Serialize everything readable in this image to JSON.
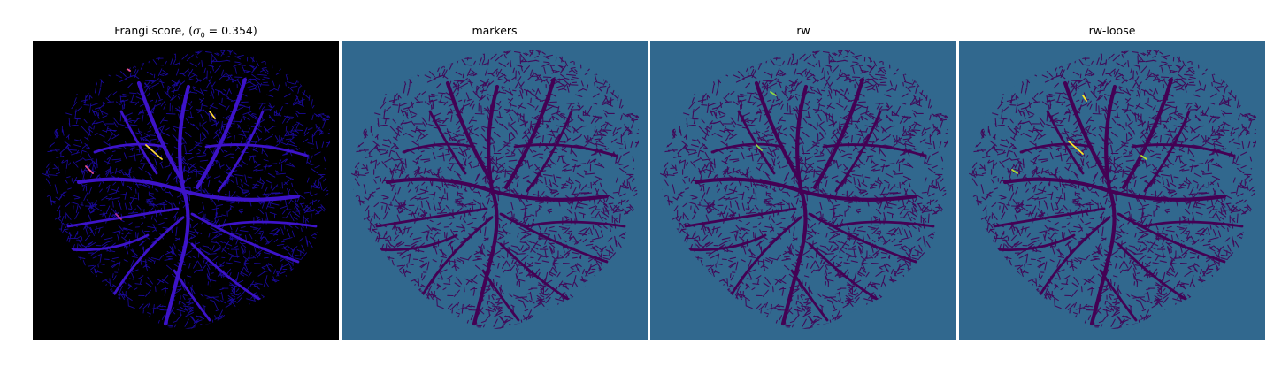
{
  "panels": [
    {
      "title": "Frangi score, (σ0 = 0.354)",
      "title_prefix": "Frangi score, (",
      "title_sigma": "σ",
      "title_sub": "0",
      "title_suffix": " = 0.354)",
      "colormap": "plasma",
      "background": "#000000",
      "mesh_color": "#1a0aa0",
      "vessel_color": "#3d13c9",
      "highlight_colors": [
        "#fdd835",
        "#e9528b",
        "#b3329f"
      ]
    },
    {
      "title": "markers",
      "colormap": "viridis",
      "background": "#31688e",
      "mesh_color": "#440154",
      "vessel_color": "#440154",
      "highlight_colors": []
    },
    {
      "title": "rw",
      "colormap": "viridis",
      "background": "#31688e",
      "mesh_color": "#440154",
      "vessel_color": "#440154",
      "highlight_colors": [
        "#8fd744"
      ]
    },
    {
      "title": "rw-loose",
      "colormap": "viridis",
      "background": "#31688e",
      "mesh_color": "#440154",
      "vessel_color": "#440154",
      "highlight_colors": [
        "#fde725",
        "#b5de2b"
      ]
    }
  ]
}
